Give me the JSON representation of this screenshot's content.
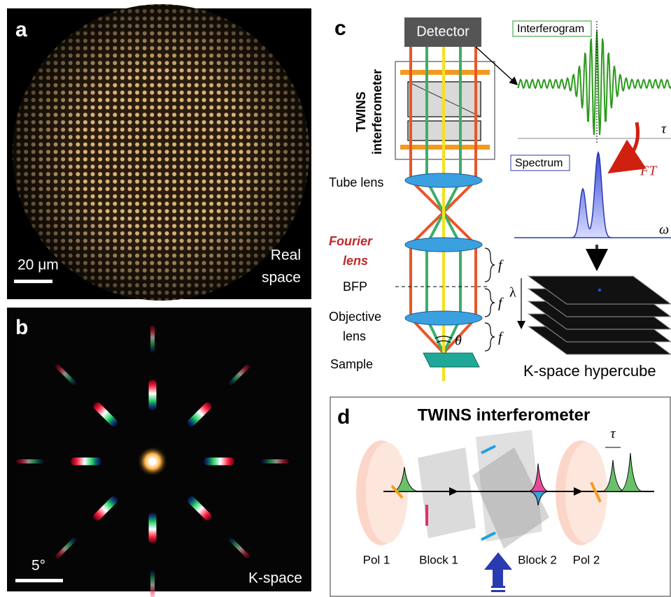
{
  "panel_a": {
    "label": "a",
    "scale_bar": "20 μm",
    "caption": [
      "Real",
      "space"
    ]
  },
  "panel_b": {
    "label": "b",
    "scale_bar": "5°",
    "caption": "K-space"
  },
  "panel_c": {
    "label": "c",
    "detector": "Detector",
    "interferometer": [
      "TWINS",
      "interferometer"
    ],
    "interferogram": "Interferogram",
    "tau": "τ",
    "ft": "FT",
    "spectrum": "Spectrum",
    "omega": "ω",
    "tube_lens": "Tube lens",
    "fourier_lens": [
      "Fourier",
      "lens"
    ],
    "bfp": "BFP",
    "focal": [
      "f",
      "f",
      "f"
    ],
    "objective_lens": [
      "Objective",
      "lens"
    ],
    "sample": "Sample",
    "theta": "θ",
    "lambda": "λ",
    "hypercube": "K-space hypercube"
  },
  "panel_d": {
    "label": "d",
    "title": "TWINS interferometer",
    "tau": "τ",
    "pol1": "Pol 1",
    "block1": "Block 1",
    "block2": "Block 2",
    "pol2": "Pol 2"
  }
}
